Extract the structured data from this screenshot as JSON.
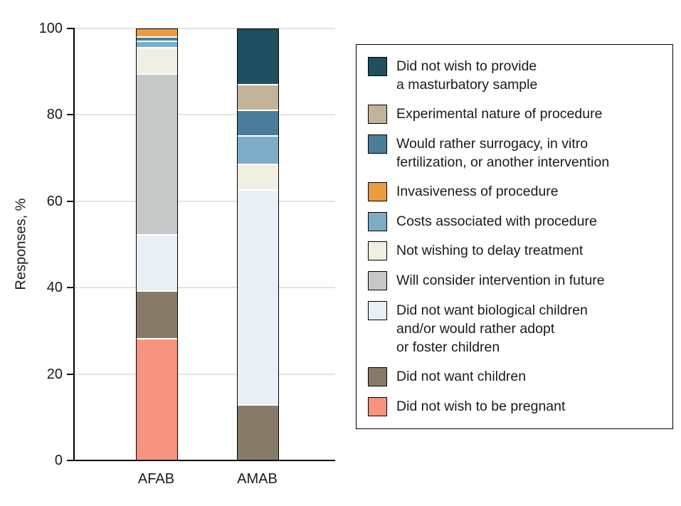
{
  "chart_data": {
    "type": "bar",
    "variant": "stacked",
    "title": "",
    "xlabel": "",
    "ylabel": "Responses, %",
    "ylim": [
      0,
      100
    ],
    "yticks": [
      0,
      20,
      40,
      60,
      80,
      100
    ],
    "grid": true,
    "categories": [
      "AFAB",
      "AMAB"
    ],
    "series": [
      {
        "name": "Did not wish to be pregnant",
        "color": "#f6947f",
        "values": [
          28,
          0
        ]
      },
      {
        "name": "Did not want children",
        "color": "#877a69",
        "values": [
          11,
          12.5
        ]
      },
      {
        "name": "Did not want biological children and/or would rather adopt or foster children",
        "color": "#e9f0f5",
        "values": [
          13,
          50
        ]
      },
      {
        "name": "Will consider intervention in future",
        "color": "#c6c7c7",
        "values": [
          37.5,
          0
        ]
      },
      {
        "name": "Not wishing to delay treatment",
        "color": "#f1efe1",
        "values": [
          6,
          6
        ]
      },
      {
        "name": "Costs associated with procedure",
        "color": "#7dacc7",
        "values": [
          1.5,
          6.5
        ]
      },
      {
        "name": "Would rather surrogacy, in vitro fertilization, or another intervention",
        "color": "#4a7d9b",
        "values": [
          1,
          6
        ]
      },
      {
        "name": "Invasiveness of procedure",
        "color": "#ec9b40",
        "values": [
          2,
          0
        ]
      },
      {
        "name": "Experimental nature of procedure",
        "color": "#c1b39a",
        "values": [
          0,
          6
        ]
      },
      {
        "name": "Did not wish to provide a masturbatory sample",
        "color": "#1f4f61",
        "values": [
          0,
          13
        ]
      }
    ],
    "legend": {
      "position": "right",
      "items": [
        {
          "label": "Did not wish to provide\na masturbatory sample",
          "color": "#1f4f61"
        },
        {
          "label": "Experimental nature of procedure",
          "color": "#c1b39a"
        },
        {
          "label": "Would rather surrogacy, in vitro\nfertilization, or another intervention",
          "color": "#4a7d9b"
        },
        {
          "label": "Invasiveness of procedure",
          "color": "#ec9b40"
        },
        {
          "label": "Costs associated with procedure",
          "color": "#7dacc7"
        },
        {
          "label": "Not wishing to delay treatment",
          "color": "#f1efe1"
        },
        {
          "label": "Will consider intervention in future",
          "color": "#c6c7c7"
        },
        {
          "label": "Did not want biological children\nand/or would rather adopt\nor foster children",
          "color": "#e9f0f5"
        },
        {
          "label": "Did not want children",
          "color": "#877a69"
        },
        {
          "label": "Did not wish to be pregnant",
          "color": "#f6947f"
        }
      ]
    }
  }
}
